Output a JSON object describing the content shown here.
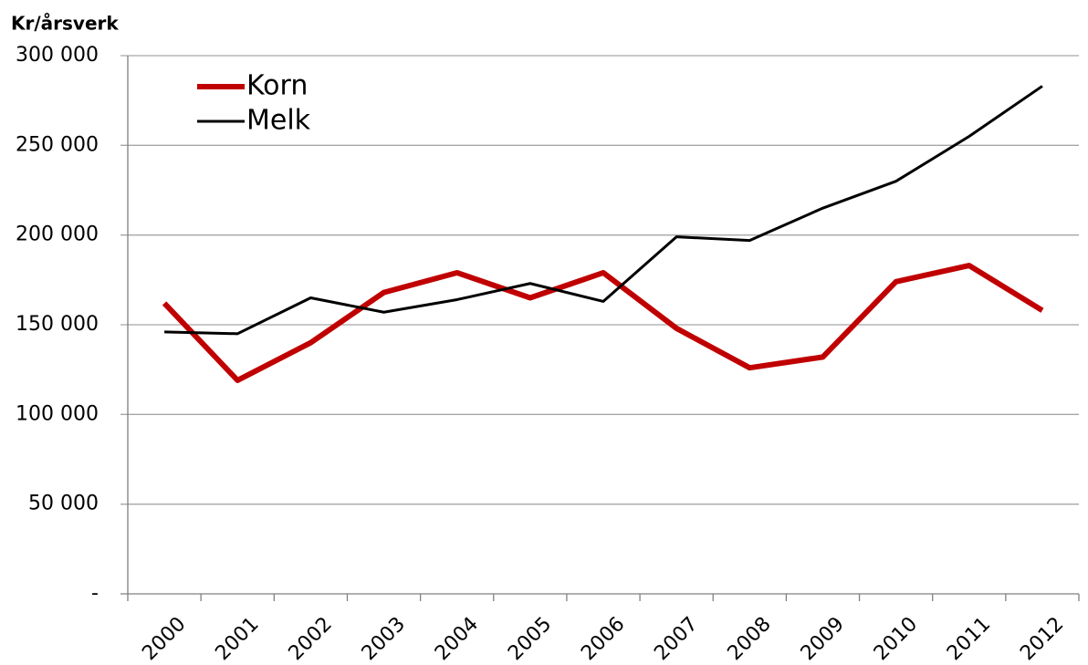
{
  "chart_data": {
    "type": "line",
    "y_axis_label": "Kr/årsverk",
    "categories": [
      "2000",
      "2001",
      "2002",
      "2003",
      "2004",
      "2005",
      "2006",
      "2007",
      "2008",
      "2009",
      "2010",
      "2011",
      "2012"
    ],
    "series": [
      {
        "name": "Korn",
        "color": "#c00000",
        "width": 6,
        "values": [
          162000,
          119000,
          140000,
          168000,
          179000,
          165000,
          179000,
          148000,
          126000,
          132000,
          174000,
          183000,
          158000
        ]
      },
      {
        "name": "Melk",
        "color": "#000000",
        "width": 3,
        "values": [
          146000,
          145000,
          165000,
          157000,
          164000,
          173000,
          163000,
          199000,
          197000,
          215000,
          230000,
          255000,
          283000
        ]
      }
    ],
    "ylim": [
      0,
      300000
    ],
    "yticks": [
      {
        "value": 0,
        "label": "-"
      },
      {
        "value": 50000,
        "label": "50 000"
      },
      {
        "value": 100000,
        "label": "100 000"
      },
      {
        "value": 150000,
        "label": "150 000"
      },
      {
        "value": 200000,
        "label": "200 000"
      },
      {
        "value": 250000,
        "label": "250 000"
      },
      {
        "value": 300000,
        "label": "300 000"
      }
    ],
    "grid": true,
    "legend": "upper-left"
  }
}
